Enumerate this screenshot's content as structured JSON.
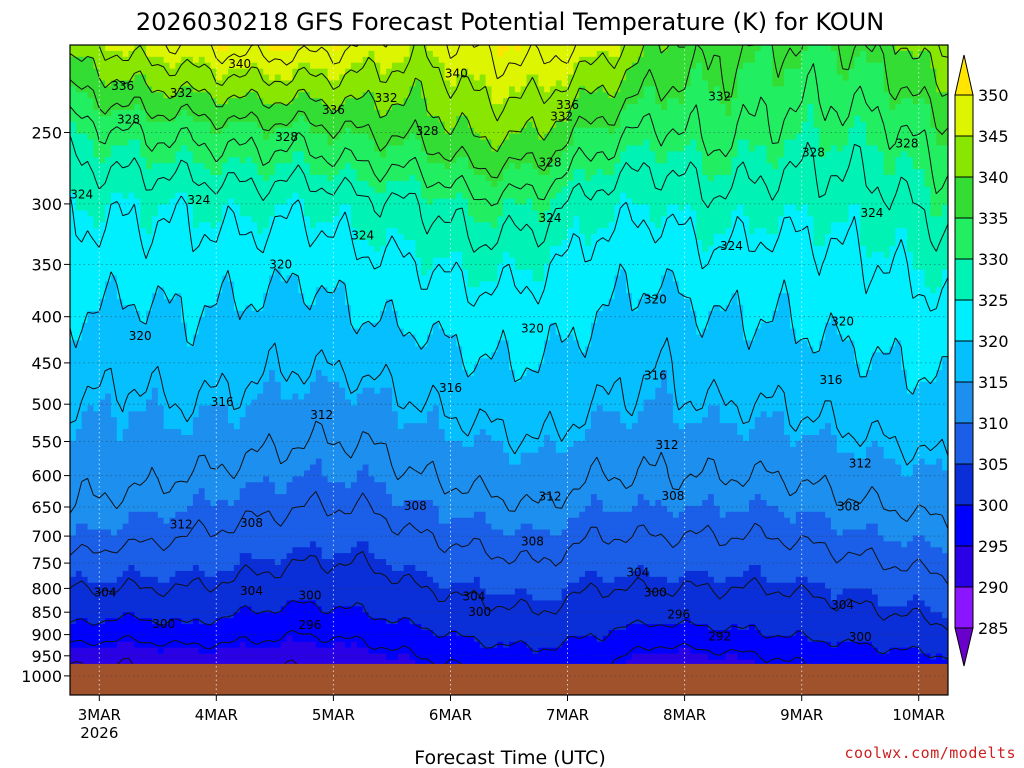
{
  "chart_data": {
    "type": "contour",
    "title": "2026030218 GFS Forecast Potential Temperature (K) for KOUN",
    "xlabel": "Forecast Time (UTC)",
    "credit": "coolwx.com/modelts",
    "x_ticks": [
      {
        "label": "3MAR",
        "sublabel": "2026",
        "day": 0.25
      },
      {
        "label": "4MAR",
        "sublabel": "",
        "day": 1.25
      },
      {
        "label": "5MAR",
        "sublabel": "",
        "day": 2.25
      },
      {
        "label": "6MAR",
        "sublabel": "",
        "day": 3.25
      },
      {
        "label": "7MAR",
        "sublabel": "",
        "day": 4.25
      },
      {
        "label": "8MAR",
        "sublabel": "",
        "day": 5.25
      },
      {
        "label": "9MAR",
        "sublabel": "",
        "day": 6.25
      },
      {
        "label": "10MAR",
        "sublabel": "",
        "day": 7.25
      }
    ],
    "y_axis": {
      "scale": "log-pressure",
      "units": "hPa",
      "ylim": [
        1050,
        200
      ],
      "ticks": [
        250,
        300,
        350,
        400,
        450,
        500,
        550,
        600,
        650,
        700,
        750,
        800,
        850,
        900,
        950,
        1000
      ]
    },
    "xlim": [
      0,
      7.5
    ],
    "colorbar": {
      "levels": [
        285,
        290,
        295,
        300,
        305,
        310,
        315,
        320,
        325,
        330,
        335,
        340,
        345,
        350
      ],
      "colors": [
        "#6a00cc",
        "#8a16ff",
        "#2a00e6",
        "#0000ff",
        "#0a2ed8",
        "#1b5fe8",
        "#1d8fef",
        "#06bfff",
        "#00efff",
        "#00f2b4",
        "#22ee62",
        "#33dd33",
        "#88e600",
        "#ddf500",
        "#ffe500"
      ]
    },
    "contour_interval": 4,
    "contour_range": [
      288,
      352
    ],
    "profiles_pressure": [
      1000,
      950,
      900,
      850,
      800,
      750,
      700,
      650,
      600,
      550,
      500,
      450,
      400,
      350,
      300,
      250,
      200
    ],
    "profiles": [
      {
        "day": 0.0,
        "theta": [
          291,
          293,
          298,
          302,
          304,
          307,
          310,
          312,
          313,
          314,
          316,
          318,
          320,
          322,
          325,
          330,
          342
        ]
      },
      {
        "day": 0.5,
        "theta": [
          291,
          293,
          297,
          301,
          304,
          306,
          309,
          311,
          313,
          314,
          315,
          317,
          319,
          322,
          325,
          332,
          346
        ]
      },
      {
        "day": 1.0,
        "theta": [
          292,
          294,
          298,
          302,
          304,
          306,
          308,
          310,
          312,
          314,
          316,
          318,
          320,
          322,
          325,
          333,
          348
        ]
      },
      {
        "day": 1.5,
        "theta": [
          292,
          294,
          297,
          300,
          303,
          305,
          307,
          309,
          311,
          313,
          315,
          317,
          319,
          322,
          326,
          334,
          350
        ]
      },
      {
        "day": 2.0,
        "theta": [
          291,
          293,
          296,
          299,
          302,
          304,
          306,
          308,
          310,
          312,
          314,
          316,
          318,
          321,
          325,
          334,
          350
        ]
      },
      {
        "day": 2.5,
        "theta": [
          292,
          294,
          297,
          300,
          302,
          304,
          306,
          308,
          310,
          312,
          314,
          317,
          320,
          323,
          327,
          336,
          348
        ]
      },
      {
        "day": 3.0,
        "theta": [
          294,
          296,
          299,
          302,
          304,
          306,
          308,
          310,
          312,
          314,
          316,
          318,
          321,
          324,
          328,
          337,
          345
        ]
      },
      {
        "day": 3.5,
        "theta": [
          295,
          298,
          301,
          303,
          305,
          307,
          309,
          311,
          313,
          315,
          317,
          320,
          322,
          326,
          331,
          341,
          349
        ]
      },
      {
        "day": 4.0,
        "theta": [
          296,
          299,
          302,
          304,
          306,
          308,
          310,
          312,
          314,
          316,
          318,
          320,
          322,
          325,
          330,
          340,
          350
        ]
      },
      {
        "day": 4.5,
        "theta": [
          296,
          298,
          300,
          302,
          304,
          306,
          308,
          310,
          312,
          314,
          316,
          318,
          320,
          322,
          326,
          334,
          347
        ]
      },
      {
        "day": 5.0,
        "theta": [
          291,
          294,
          298,
          302,
          304,
          306,
          308,
          310,
          312,
          313,
          315,
          316,
          318,
          321,
          325,
          331,
          340
        ]
      },
      {
        "day": 5.5,
        "theta": [
          292,
          295,
          299,
          302,
          304,
          306,
          308,
          310,
          312,
          314,
          316,
          318,
          320,
          323,
          327,
          333,
          337
        ]
      },
      {
        "day": 6.0,
        "theta": [
          294,
          296,
          300,
          302,
          304,
          306,
          308,
          310,
          312,
          314,
          316,
          318,
          320,
          322,
          326,
          331,
          336
        ]
      },
      {
        "day": 6.5,
        "theta": [
          296,
          298,
          301,
          303,
          305,
          307,
          309,
          311,
          313,
          315,
          317,
          319,
          321,
          323,
          326,
          330,
          335
        ]
      },
      {
        "day": 7.0,
        "theta": [
          296,
          299,
          302,
          304,
          306,
          308,
          310,
          312,
          314,
          316,
          318,
          320,
          322,
          324,
          327,
          331,
          338
        ]
      },
      {
        "day": 7.5,
        "theta": [
          297,
          300,
          303,
          305,
          307,
          309,
          311,
          313,
          315,
          317,
          319,
          321,
          323,
          326,
          330,
          335,
          345
        ]
      }
    ],
    "contour_labels": [
      {
        "value": "340",
        "day": 1.45,
        "p": 210
      },
      {
        "value": "336",
        "day": 0.45,
        "p": 222
      },
      {
        "value": "332",
        "day": 0.95,
        "p": 226
      },
      {
        "value": "336",
        "day": 2.25,
        "p": 236
      },
      {
        "value": "332",
        "day": 2.7,
        "p": 229
      },
      {
        "value": "340",
        "day": 3.3,
        "p": 215
      },
      {
        "value": "336",
        "day": 4.25,
        "p": 233
      },
      {
        "value": "332",
        "day": 4.2,
        "p": 240
      },
      {
        "value": "332",
        "day": 5.55,
        "p": 228
      },
      {
        "value": "328",
        "day": 0.5,
        "p": 242
      },
      {
        "value": "328",
        "day": 1.85,
        "p": 253
      },
      {
        "value": "328",
        "day": 3.05,
        "p": 249
      },
      {
        "value": "328",
        "day": 4.1,
        "p": 270
      },
      {
        "value": "328",
        "day": 6.35,
        "p": 263
      },
      {
        "value": "328",
        "day": 7.15,
        "p": 257
      },
      {
        "value": "324",
        "day": 0.1,
        "p": 293
      },
      {
        "value": "324",
        "day": 1.1,
        "p": 297
      },
      {
        "value": "324",
        "day": 2.5,
        "p": 325
      },
      {
        "value": "324",
        "day": 4.1,
        "p": 311
      },
      {
        "value": "324",
        "day": 5.65,
        "p": 334
      },
      {
        "value": "324",
        "day": 6.85,
        "p": 307
      },
      {
        "value": "320",
        "day": 1.8,
        "p": 350
      },
      {
        "value": "320",
        "day": 0.6,
        "p": 420
      },
      {
        "value": "320",
        "day": 3.95,
        "p": 412
      },
      {
        "value": "320",
        "day": 5.0,
        "p": 383
      },
      {
        "value": "320",
        "day": 6.6,
        "p": 405
      },
      {
        "value": "316",
        "day": 1.3,
        "p": 497
      },
      {
        "value": "316",
        "day": 3.25,
        "p": 480
      },
      {
        "value": "316",
        "day": 5.0,
        "p": 465
      },
      {
        "value": "316",
        "day": 6.5,
        "p": 470
      },
      {
        "value": "312",
        "day": 2.15,
        "p": 514
      },
      {
        "value": "312",
        "day": 5.1,
        "p": 555
      },
      {
        "value": "312",
        "day": 6.75,
        "p": 582
      },
      {
        "value": "312",
        "day": 0.95,
        "p": 680
      },
      {
        "value": "312",
        "day": 4.1,
        "p": 633
      },
      {
        "value": "308",
        "day": 1.55,
        "p": 677
      },
      {
        "value": "308",
        "day": 2.95,
        "p": 648
      },
      {
        "value": "308",
        "day": 3.95,
        "p": 710
      },
      {
        "value": "308",
        "day": 5.15,
        "p": 632
      },
      {
        "value": "308",
        "day": 6.65,
        "p": 649
      },
      {
        "value": "304",
        "day": 0.3,
        "p": 808
      },
      {
        "value": "304",
        "day": 1.55,
        "p": 805
      },
      {
        "value": "304",
        "day": 3.45,
        "p": 817
      },
      {
        "value": "304",
        "day": 4.85,
        "p": 768
      },
      {
        "value": "304",
        "day": 6.6,
        "p": 835
      },
      {
        "value": "300",
        "day": 0.8,
        "p": 876
      },
      {
        "value": "300",
        "day": 2.05,
        "p": 815
      },
      {
        "value": "300",
        "day": 3.5,
        "p": 850
      },
      {
        "value": "300",
        "day": 5.0,
        "p": 808
      },
      {
        "value": "300",
        "day": 6.75,
        "p": 906
      },
      {
        "value": "296",
        "day": 2.05,
        "p": 878
      },
      {
        "value": "296",
        "day": 5.2,
        "p": 855
      },
      {
        "value": "292",
        "day": 5.55,
        "p": 905
      }
    ],
    "ground": {
      "pressure": 970,
      "color": "#a0522d"
    }
  }
}
